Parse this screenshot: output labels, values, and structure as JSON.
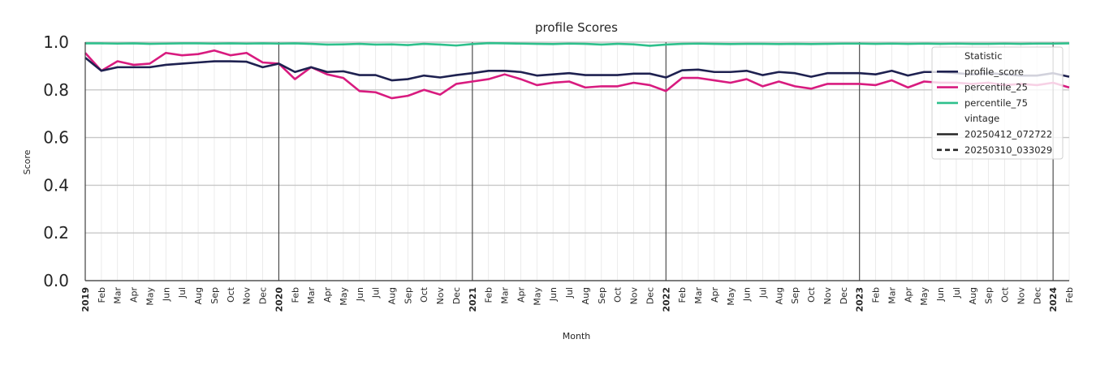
{
  "chart_data": {
    "type": "line",
    "title": "profile Scores",
    "xlabel": "Month",
    "ylabel": "Score",
    "ylim": [
      0.0,
      1.0
    ],
    "yticks": [
      "0.0",
      "0.2",
      "0.4",
      "0.6",
      "0.8",
      "1.0"
    ],
    "grid": true,
    "legend_position": "top-right",
    "x": [
      "2019",
      "Feb",
      "Mar",
      "Apr",
      "May",
      "Jun",
      "Jul",
      "Aug",
      "Sep",
      "Oct",
      "Nov",
      "Dec",
      "2020",
      "Feb",
      "Mar",
      "Apr",
      "May",
      "Jun",
      "Jul",
      "Aug",
      "Sep",
      "Oct",
      "Nov",
      "Dec",
      "2021",
      "Feb",
      "Mar",
      "Apr",
      "May",
      "Jun",
      "Jul",
      "Aug",
      "Sep",
      "Oct",
      "Nov",
      "Dec",
      "2022",
      "Feb",
      "Mar",
      "Apr",
      "May",
      "Jun",
      "Jul",
      "Aug",
      "Sep",
      "Oct",
      "Nov",
      "Dec",
      "2023",
      "Feb",
      "Mar",
      "Apr",
      "May",
      "Jun",
      "Jul",
      "Aug",
      "Sep",
      "Oct",
      "Nov",
      "Dec",
      "2024",
      "Feb"
    ],
    "year_labels": [
      "2019",
      "2020",
      "2021",
      "2022",
      "2023",
      "2024"
    ],
    "series": [
      {
        "name": "percentile_75",
        "vintage": "20250412_072722",
        "color": "#2ec08c",
        "dash": "solid",
        "values": [
          0.995,
          0.995,
          0.994,
          0.995,
          0.993,
          0.994,
          0.995,
          0.995,
          0.994,
          0.995,
          0.994,
          0.995,
          0.994,
          0.995,
          0.993,
          0.99,
          0.991,
          0.993,
          0.99,
          0.991,
          0.988,
          0.993,
          0.99,
          0.986,
          0.992,
          0.996,
          0.995,
          0.994,
          0.993,
          0.992,
          0.994,
          0.993,
          0.99,
          0.993,
          0.991,
          0.985,
          0.99,
          0.993,
          0.994,
          0.993,
          0.992,
          0.993,
          0.993,
          0.992,
          0.993,
          0.992,
          0.993,
          0.994,
          0.994,
          0.993,
          0.994,
          0.993,
          0.994,
          0.993,
          0.994,
          0.993,
          0.993,
          0.994,
          0.993,
          0.994,
          0.994,
          0.995
        ]
      },
      {
        "name": "percentile_25",
        "vintage": "20250412_072722",
        "color": "#d81b7f",
        "dash": "solid",
        "values": [
          0.955,
          0.88,
          0.92,
          0.905,
          0.91,
          0.955,
          0.945,
          0.95,
          0.965,
          0.945,
          0.955,
          0.915,
          0.91,
          0.845,
          0.895,
          0.865,
          0.85,
          0.795,
          0.79,
          0.765,
          0.775,
          0.8,
          0.78,
          0.825,
          0.835,
          0.845,
          0.865,
          0.845,
          0.82,
          0.83,
          0.835,
          0.81,
          0.815,
          0.815,
          0.83,
          0.82,
          0.795,
          0.85,
          0.85,
          0.84,
          0.83,
          0.845,
          0.815,
          0.835,
          0.815,
          0.805,
          0.825,
          0.825,
          0.825,
          0.82,
          0.84,
          0.81,
          0.835,
          0.83,
          0.83,
          0.825,
          0.83,
          0.82,
          0.825,
          0.82,
          0.83,
          0.81
        ]
      },
      {
        "name": "profile_score",
        "vintage": "20250412_072722",
        "color": "#1e2150",
        "dash": "solid",
        "values": [
          0.935,
          0.88,
          0.895,
          0.895,
          0.895,
          0.905,
          0.91,
          0.915,
          0.92,
          0.92,
          0.918,
          0.895,
          0.91,
          0.875,
          0.895,
          0.875,
          0.878,
          0.862,
          0.862,
          0.84,
          0.845,
          0.86,
          0.852,
          0.862,
          0.87,
          0.88,
          0.88,
          0.875,
          0.86,
          0.865,
          0.87,
          0.862,
          0.862,
          0.862,
          0.868,
          0.868,
          0.852,
          0.882,
          0.885,
          0.875,
          0.875,
          0.88,
          0.862,
          0.875,
          0.87,
          0.855,
          0.87,
          0.87,
          0.87,
          0.865,
          0.88,
          0.86,
          0.875,
          0.875,
          0.87,
          0.865,
          0.87,
          0.865,
          0.86,
          0.86,
          0.87,
          0.855
        ]
      }
    ],
    "legend": {
      "header_statistic": "Statistic",
      "items_statistic": [
        {
          "label": "profile_score",
          "color": "#1e2150"
        },
        {
          "label": "percentile_25",
          "color": "#d81b7f"
        },
        {
          "label": "percentile_75",
          "color": "#2ec08c"
        }
      ],
      "header_vintage": "vintage",
      "items_vintage": [
        {
          "label": "20250412_072722",
          "color": "#262626",
          "dash": "solid"
        },
        {
          "label": "20250310_033029",
          "color": "#262626",
          "dash": "dashed"
        }
      ]
    }
  }
}
